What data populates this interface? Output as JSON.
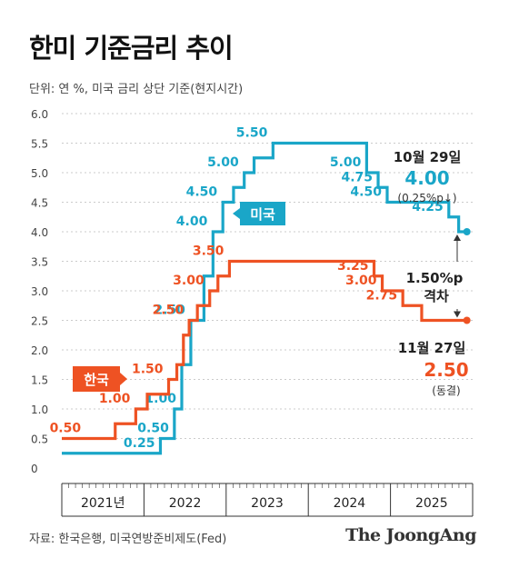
{
  "title": "한미 기준금리 추이",
  "unit_note": "단위: 연 %, 미국 금리 상단 기준(현지시간)",
  "source": "자료: 한국은행, 미국연방준비제도(Fed)",
  "brand": "The JoongAng",
  "colors": {
    "us": "#1AA6C8",
    "korea": "#EE5223",
    "grid": "#bbbbbb",
    "axis": "#333333"
  },
  "chart_data": {
    "type": "line",
    "step": true,
    "title": "한미 기준금리 추이",
    "ylim": [
      0,
      6.0
    ],
    "y_ticks": [
      "0",
      "0.5",
      "1.0",
      "1.5",
      "2.0",
      "2.5",
      "3.0",
      "3.5",
      "4.0",
      "4.5",
      "5.0",
      "5.5",
      "6.0"
    ],
    "grid": true,
    "x_categories": [
      "2021년",
      "2022",
      "2023",
      "2024",
      "2025"
    ],
    "series": [
      {
        "name": "미국",
        "color": "#1AA6C8",
        "points": [
          [
            2021.0,
            0.25
          ],
          [
            2022.2,
            0.5
          ],
          [
            2022.37,
            1.0
          ],
          [
            2022.46,
            1.75
          ],
          [
            2022.57,
            2.5
          ],
          [
            2022.73,
            3.25
          ],
          [
            2022.84,
            4.0
          ],
          [
            2022.96,
            4.5
          ],
          [
            2023.09,
            4.75
          ],
          [
            2023.22,
            5.0
          ],
          [
            2023.34,
            5.25
          ],
          [
            2023.57,
            5.5
          ],
          [
            2024.71,
            5.0
          ],
          [
            2024.85,
            4.75
          ],
          [
            2024.96,
            4.5
          ],
          [
            2025.71,
            4.25
          ],
          [
            2025.83,
            4.0
          ],
          [
            2025.93,
            4.0
          ]
        ],
        "labels": [
          {
            "x": 2022.2,
            "y": 0.25,
            "text": "0.25"
          },
          {
            "x": 2022.37,
            "y": 0.5,
            "text": "0.50"
          },
          {
            "x": 2022.46,
            "y": 1.0,
            "text": "1.00"
          },
          {
            "x": 2022.57,
            "y": 2.5,
            "text": "2.50"
          },
          {
            "x": 2022.84,
            "y": 4.0,
            "text": "4.00"
          },
          {
            "x": 2022.96,
            "y": 4.5,
            "text": "4.50"
          },
          {
            "x": 2023.22,
            "y": 5.0,
            "text": "5.00"
          },
          {
            "x": 2023.57,
            "y": 5.5,
            "text": "5.50"
          },
          {
            "x": 2024.71,
            "y": 5.0,
            "text": "5.00"
          },
          {
            "x": 2024.85,
            "y": 4.75,
            "text": "4.75"
          },
          {
            "x": 2024.96,
            "y": 4.5,
            "text": "4.50"
          },
          {
            "x": 2025.71,
            "y": 4.25,
            "text": "4.25"
          }
        ]
      },
      {
        "name": "한국",
        "color": "#EE5223",
        "points": [
          [
            2021.0,
            0.5
          ],
          [
            2021.65,
            0.75
          ],
          [
            2021.9,
            1.0
          ],
          [
            2022.04,
            1.25
          ],
          [
            2022.3,
            1.5
          ],
          [
            2022.4,
            1.75
          ],
          [
            2022.48,
            2.25
          ],
          [
            2022.55,
            2.5
          ],
          [
            2022.65,
            2.75
          ],
          [
            2022.8,
            3.0
          ],
          [
            2022.9,
            3.25
          ],
          [
            2023.04,
            3.5
          ],
          [
            2024.8,
            3.25
          ],
          [
            2024.9,
            3.0
          ],
          [
            2025.15,
            2.75
          ],
          [
            2025.38,
            2.5
          ],
          [
            2025.93,
            2.5
          ]
        ],
        "labels": [
          {
            "x": 2021.3,
            "y": 0.5,
            "text": "0.50"
          },
          {
            "x": 2021.9,
            "y": 1.0,
            "text": "1.00"
          },
          {
            "x": 2022.3,
            "y": 1.5,
            "text": "1.50"
          },
          {
            "x": 2022.55,
            "y": 2.5,
            "text": "2.50"
          },
          {
            "x": 2022.8,
            "y": 3.0,
            "text": "3.00"
          },
          {
            "x": 2023.04,
            "y": 3.5,
            "text": "3.50"
          },
          {
            "x": 2024.8,
            "y": 3.25,
            "text": "3.25"
          },
          {
            "x": 2024.9,
            "y": 3.0,
            "text": "3.00"
          },
          {
            "x": 2025.15,
            "y": 2.75,
            "text": "2.75"
          }
        ]
      }
    ],
    "annotations": {
      "us_latest_date": "10월 29일",
      "us_latest_value": "4.00",
      "us_latest_change": "(0.25%p↓)",
      "gap_value": "1.50%p",
      "gap_label": "격차",
      "korea_latest_date": "11월 27일",
      "korea_latest_value": "2.50",
      "korea_latest_note": "(동결)"
    }
  }
}
